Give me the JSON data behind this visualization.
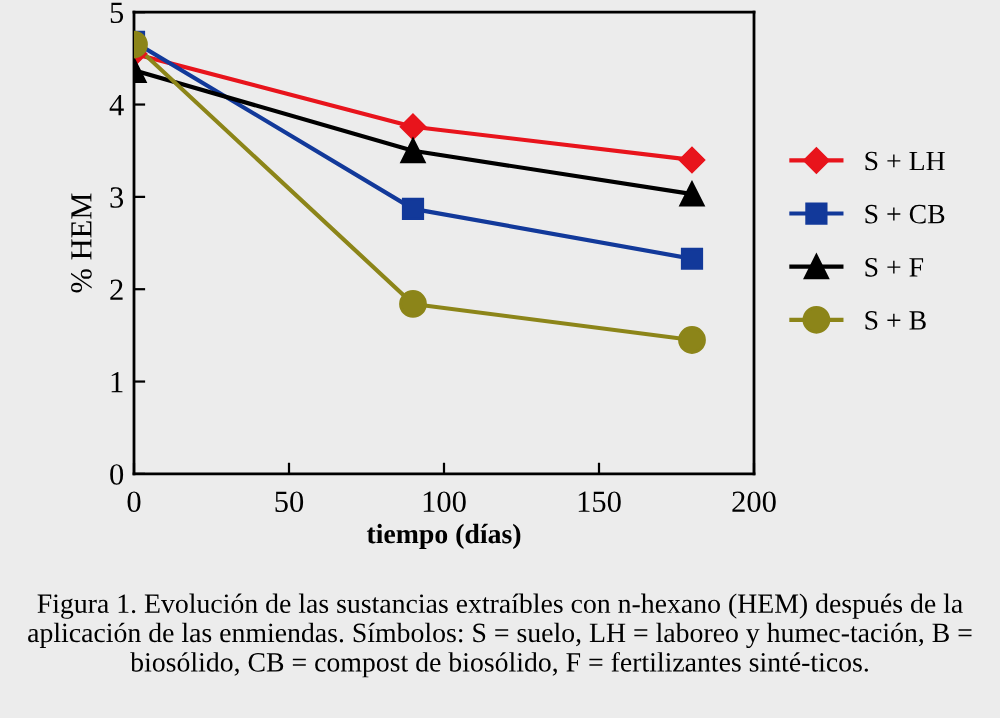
{
  "chart_data": {
    "type": "line",
    "xlabel": "tiempo (días)",
    "ylabel": "% HEM",
    "x": [
      0,
      90,
      180
    ],
    "series": [
      {
        "name": "S + LH",
        "color": "#e8141c",
        "marker": "diamond",
        "values": [
          4.55,
          3.76,
          3.4
        ]
      },
      {
        "name": "S + CB",
        "color": "#12399a",
        "marker": "square",
        "values": [
          4.68,
          2.87,
          2.33
        ]
      },
      {
        "name": "S + F",
        "color": "#000000",
        "marker": "triangle",
        "values": [
          4.37,
          3.5,
          3.03
        ]
      },
      {
        "name": "S + B",
        "color": "#8c8519",
        "marker": "circle",
        "values": [
          4.65,
          1.84,
          1.45
        ]
      }
    ],
    "xlim": [
      0,
      200
    ],
    "xticks": [
      0,
      50,
      100,
      150,
      200
    ],
    "ylim": [
      0,
      5
    ],
    "yticks": [
      0,
      1,
      2,
      3,
      4,
      5
    ],
    "grid": false,
    "legend": "right",
    "line_style": "solid",
    "annotations": [
      "Figura 1. Evolución de las sustancias extraíbles con n-hexano (HEM) después de la aplicación de las enmiendas. Símbolos: S = suelo, LH = laboreo y humec-tación, B = biosólido, CB = compost de biosólido, F = fertilizantes sinté-ticos."
    ]
  }
}
